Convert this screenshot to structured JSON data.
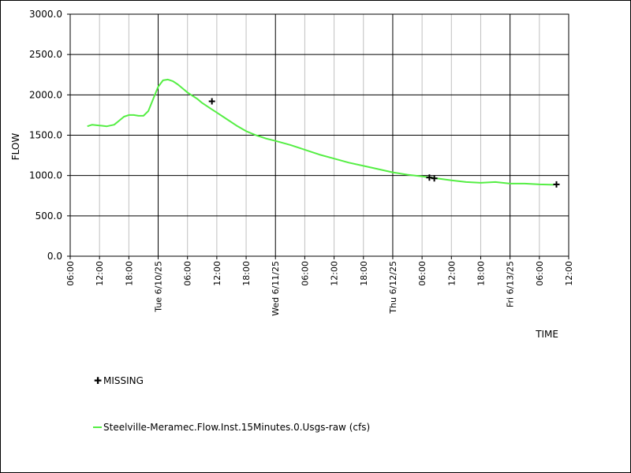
{
  "chart_data": {
    "type": "line",
    "title": "",
    "xlabel": "TIME",
    "ylabel": "FLOW",
    "ylim": [
      0,
      3000
    ],
    "xlim": [
      "2025-06-09T06:00",
      "2025-06-13T12:00"
    ],
    "grid": true,
    "yticks": [
      "0.0",
      "500.0",
      "1000.0",
      "1500.0",
      "2000.0",
      "2500.0",
      "3000.0"
    ],
    "xticks": [
      "06:00",
      "12:00",
      "18:00",
      "Tue 6/10/25",
      "06:00",
      "12:00",
      "18:00",
      "Wed 6/11/25",
      "06:00",
      "12:00",
      "18:00",
      "Thu 6/12/25",
      "06:00",
      "12:00",
      "18:00",
      "Fri 6/13/25",
      "06:00",
      "12:00"
    ],
    "series": [
      {
        "name": "Steelville-Meramec.Flow.Inst.15Minutes.0.Usgs-raw (cfs)",
        "color": "#55ee44",
        "x": [
          "2025-06-09T09:30",
          "2025-06-09T10:30",
          "2025-06-09T12:00",
          "2025-06-09T13:30",
          "2025-06-09T15:00",
          "2025-06-09T16:00",
          "2025-06-09T17:00",
          "2025-06-09T18:00",
          "2025-06-09T19:00",
          "2025-06-09T20:00",
          "2025-06-09T21:00",
          "2025-06-09T22:00",
          "2025-06-09T23:00",
          "2025-06-10T00:00",
          "2025-06-10T01:00",
          "2025-06-10T02:00",
          "2025-06-10T03:00",
          "2025-06-10T04:00",
          "2025-06-10T05:00",
          "2025-06-10T06:00",
          "2025-06-10T07:00",
          "2025-06-10T08:00",
          "2025-06-10T09:00",
          "2025-06-10T10:00",
          "2025-06-10T11:00",
          "2025-06-10T12:00",
          "2025-06-10T14:00",
          "2025-06-10T16:00",
          "2025-06-10T18:00",
          "2025-06-10T20:00",
          "2025-06-10T22:00",
          "2025-06-11T00:00",
          "2025-06-11T03:00",
          "2025-06-11T06:00",
          "2025-06-11T09:00",
          "2025-06-11T12:00",
          "2025-06-11T15:00",
          "2025-06-11T18:00",
          "2025-06-11T21:00",
          "2025-06-12T00:00",
          "2025-06-12T03:00",
          "2025-06-12T06:00",
          "2025-06-12T09:00",
          "2025-06-12T12:00",
          "2025-06-12T15:00",
          "2025-06-12T18:00",
          "2025-06-12T21:00",
          "2025-06-13T00:00",
          "2025-06-13T03:00",
          "2025-06-13T06:00",
          "2025-06-13T09:00"
        ],
        "values": [
          1610,
          1630,
          1620,
          1610,
          1630,
          1680,
          1730,
          1750,
          1750,
          1740,
          1740,
          1800,
          1950,
          2100,
          2180,
          2190,
          2170,
          2130,
          2080,
          2030,
          1990,
          1950,
          1900,
          1860,
          1820,
          1780,
          1700,
          1620,
          1550,
          1500,
          1460,
          1430,
          1380,
          1320,
          1260,
          1210,
          1160,
          1120,
          1080,
          1040,
          1010,
          990,
          965,
          940,
          920,
          910,
          920,
          900,
          900,
          890,
          885
        ]
      }
    ],
    "missing_marker_points": [
      {
        "x": "2025-06-10T11:00",
        "y": 1920
      },
      {
        "x": "2025-06-12T07:30",
        "y": 975
      },
      {
        "x": "2025-06-12T08:30",
        "y": 965
      },
      {
        "x": "2025-06-13T09:30",
        "y": 890
      }
    ]
  },
  "legend": {
    "missing_label": "MISSING",
    "missing_symbol": "✚",
    "series_label": "Steelville-Meramec.Flow.Inst.15Minutes.0.Usgs-raw (cfs)"
  },
  "colors": {
    "series": "#55ee44",
    "grid_major": "#000000",
    "grid_minor": "#c0c0c0",
    "marker": "#000000"
  }
}
